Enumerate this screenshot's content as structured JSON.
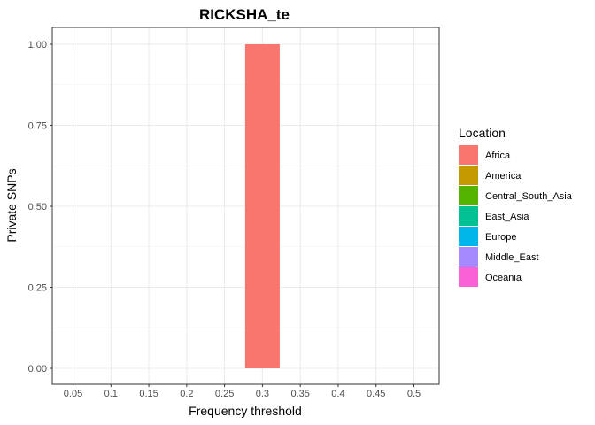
{
  "chart_data": {
    "type": "bar",
    "title": "RICKSHA_te",
    "xlabel": "Frequency threshold",
    "ylabel": "Private SNPs",
    "categories": [
      "0.05",
      "0.1",
      "0.15",
      "0.2",
      "0.25",
      "0.3",
      "0.35",
      "0.4",
      "0.45",
      "0.5"
    ],
    "series": [
      {
        "name": "Africa",
        "color": "#F8766D",
        "values": [
          0,
          0,
          0,
          0,
          0,
          1,
          0,
          0,
          0,
          0
        ]
      },
      {
        "name": "America",
        "color": "#C49A00",
        "values": [
          0,
          0,
          0,
          0,
          0,
          0,
          0,
          0,
          0,
          0
        ]
      },
      {
        "name": "Central_South_Asia",
        "color": "#53B400",
        "values": [
          0,
          0,
          0,
          0,
          0,
          0,
          0,
          0,
          0,
          0
        ]
      },
      {
        "name": "East_Asia",
        "color": "#00C094",
        "values": [
          0,
          0,
          0,
          0,
          0,
          0,
          0,
          0,
          0,
          0
        ]
      },
      {
        "name": "Europe",
        "color": "#00B6EB",
        "values": [
          0,
          0,
          0,
          0,
          0,
          0,
          0,
          0,
          0,
          0
        ]
      },
      {
        "name": "Middle_East",
        "color": "#A58AFF",
        "values": [
          0,
          0,
          0,
          0,
          0,
          0,
          0,
          0,
          0,
          0
        ]
      },
      {
        "name": "Oceania",
        "color": "#FB61D7",
        "values": [
          0,
          0,
          0,
          0,
          0,
          0,
          0,
          0,
          0,
          0
        ]
      }
    ],
    "yticks": [
      "0.00",
      "0.25",
      "0.50",
      "0.75",
      "1.00"
    ],
    "ylim": [
      0,
      1
    ],
    "legend_title": "Location",
    "legend_position": "right",
    "grid": true
  }
}
